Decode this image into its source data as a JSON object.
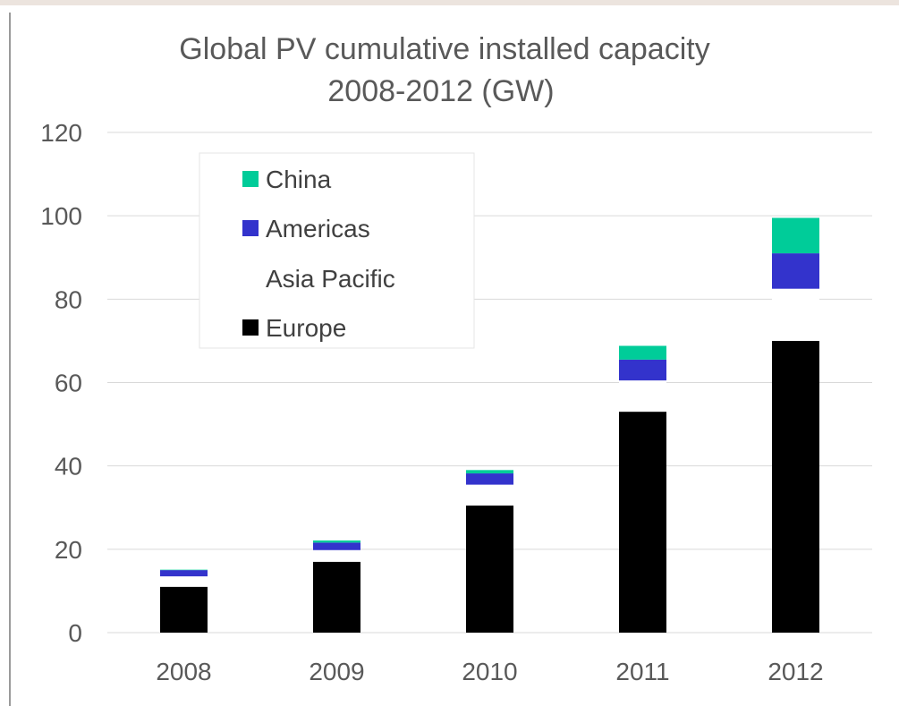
{
  "chart_data": {
    "type": "bar",
    "stacked": true,
    "title": "Global PV cumulative installed capacity",
    "subtitle": "2008-2012 (GW)",
    "xlabel": "",
    "ylabel": "",
    "categories": [
      "2008",
      "2009",
      "2010",
      "2011",
      "2012"
    ],
    "ylim": [
      0,
      120
    ],
    "yticks": [
      "0",
      "20",
      "40",
      "60",
      "80",
      "100",
      "120"
    ],
    "grid": true,
    "legend_position": "top-left",
    "series": [
      {
        "name": "Europe",
        "color": "#000000",
        "values": [
          11,
          17,
          30.5,
          53,
          70
        ]
      },
      {
        "name": "Asia Pacific",
        "color": "#ffffff",
        "values": [
          2.5,
          2.8,
          5,
          7.5,
          12.5
        ]
      },
      {
        "name": "Americas",
        "color": "#3333cc",
        "values": [
          1.5,
          1.8,
          2.7,
          5,
          8.5
        ]
      },
      {
        "name": "China",
        "color": "#00cc99",
        "values": [
          0.1,
          0.5,
          0.8,
          3.3,
          8.5
        ]
      }
    ],
    "legend_order": [
      "China",
      "Americas",
      "Asia Pacific",
      "Europe"
    ]
  }
}
